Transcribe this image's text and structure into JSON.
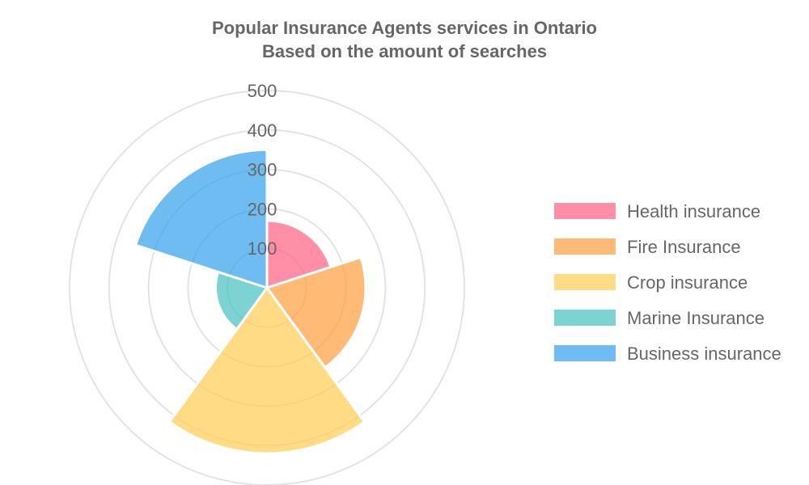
{
  "chart_data": {
    "type": "polarArea",
    "title": [
      "Popular Insurance Agents services in Ontario",
      "Based on the amount of searches"
    ],
    "categories": [
      "Health insurance",
      "Fire Insurance",
      "Crop insurance",
      "Marine Insurance",
      "Business insurance"
    ],
    "values": [
      170,
      250,
      420,
      130,
      350
    ],
    "colors": [
      "#ff6384",
      "#ff9f40",
      "#ffcd56",
      "#4bc0c0",
      "#36a2eb"
    ],
    "r_ticks": [
      "100",
      "200",
      "300",
      "400",
      "500"
    ],
    "rlim": [
      0,
      500
    ],
    "grid": true,
    "legend_position": "right"
  }
}
